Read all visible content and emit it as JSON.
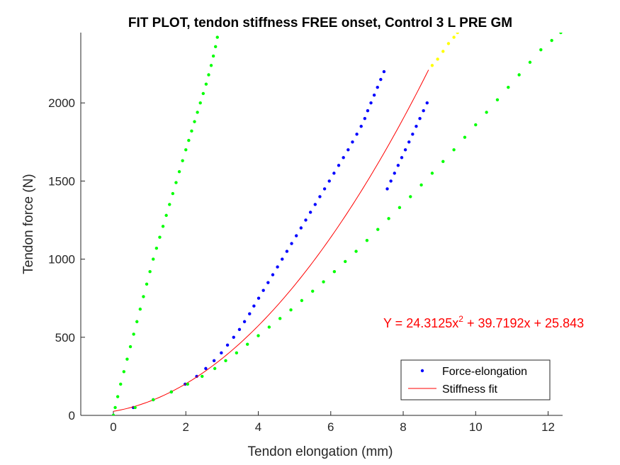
{
  "chart_data": {
    "type": "scatter",
    "title": "FIT PLOT, tendon stiffness FREE onset, Control 3 L PRE GM",
    "xlabel": "Tendon elongation (mm)",
    "ylabel": "Tendon force (N)",
    "xlim": [
      -0.9,
      12.4
    ],
    "ylim": [
      0,
      2450
    ],
    "xticks": [
      0,
      2,
      4,
      6,
      8,
      10,
      12
    ],
    "yticks": [
      0,
      500,
      1000,
      1500,
      2000
    ],
    "xtick_labels": [
      "0",
      "2",
      "4",
      "6",
      "8",
      "10",
      "12"
    ],
    "ytick_labels": [
      "0",
      "500",
      "1000",
      "1500",
      "2000"
    ],
    "annotation": {
      "prefix": "Y = 24.3125x",
      "exponent": "2",
      "suffix": " + 39.7192x + 25.843",
      "color": "#ff0000"
    },
    "legend": {
      "position": "bottom-right",
      "entries": [
        {
          "label": "Force-elongation",
          "marker": "dot",
          "color": "#0000ff"
        },
        {
          "label": "Stiffness fit",
          "marker": "line",
          "color": "#ff0000"
        }
      ]
    },
    "series": [
      {
        "name": "Force-elongation",
        "kind": "points",
        "color": "#0000ff",
        "x": [
          0.0,
          0.55,
          1.1,
          1.6,
          1.98,
          2.3,
          2.55,
          2.78,
          2.98,
          3.15,
          3.32,
          3.48,
          3.62,
          3.76,
          3.88,
          4.01,
          4.14,
          4.27,
          4.4,
          4.53,
          4.66,
          4.79,
          4.92,
          5.05,
          5.18,
          5.31,
          5.44,
          5.57,
          5.7,
          5.83,
          5.96,
          6.09,
          6.22,
          6.35,
          6.48,
          6.6,
          6.72,
          6.84,
          6.94,
          7.02,
          7.11,
          7.2,
          7.29,
          7.38,
          7.47,
          7.56,
          7.66,
          7.76,
          7.86,
          7.96,
          8.06,
          8.16,
          8.26,
          8.36,
          8.46,
          8.56,
          8.66
        ],
        "y": [
          0,
          50,
          100,
          150,
          200,
          250,
          300,
          350,
          400,
          450,
          500,
          550,
          600,
          650,
          700,
          750,
          800,
          850,
          900,
          950,
          1000,
          1050,
          1100,
          1150,
          1200,
          1250,
          1300,
          1350,
          1400,
          1450,
          1500,
          1550,
          1600,
          1650,
          1700,
          1750,
          1800,
          1850,
          1900,
          1950,
          2000,
          2050,
          2100,
          2150,
          2200,
          1450,
          1500,
          1550,
          1600,
          1650,
          1700,
          1750,
          1800,
          1850,
          1900,
          1950,
          2000
        ]
      },
      {
        "name": "Stiffness fit",
        "kind": "line",
        "color": "#ff0000",
        "equation": {
          "a": 24.3125,
          "b": 39.7192,
          "c": 25.843
        },
        "x_range": [
          0,
          8.7
        ]
      },
      {
        "kind": "points",
        "color": "#00ff00",
        "x": [
          0.0,
          0.05,
          0.12,
          0.2,
          0.29,
          0.38,
          0.47,
          0.56,
          0.65,
          0.74,
          0.83,
          0.92,
          1.01,
          1.1,
          1.19,
          1.28,
          1.37,
          1.46,
          1.55,
          1.64,
          1.73,
          1.82,
          1.91,
          2.0,
          2.08,
          2.16,
          2.24,
          2.32,
          2.4,
          2.48,
          2.56,
          2.63,
          2.7,
          2.76,
          2.82,
          2.87
        ],
        "y": [
          0,
          50,
          120,
          200,
          280,
          360,
          440,
          520,
          600,
          680,
          760,
          840,
          920,
          1000,
          1070,
          1140,
          1210,
          1280,
          1350,
          1420,
          1490,
          1560,
          1630,
          1700,
          1760,
          1820,
          1880,
          1940,
          2000,
          2060,
          2120,
          2180,
          2240,
          2300,
          2360,
          2420
        ]
      },
      {
        "kind": "points",
        "color": "#00ff00",
        "x": [
          0.0,
          0.6,
          1.1,
          1.6,
          2.05,
          2.45,
          2.8,
          3.1,
          3.4,
          3.7,
          4.0,
          4.3,
          4.6,
          4.9,
          5.2,
          5.5,
          5.8,
          6.1,
          6.4,
          6.7,
          7.0,
          7.3,
          7.6,
          7.9,
          8.2,
          8.5,
          8.8,
          9.1,
          9.4,
          9.7,
          10.0,
          10.3,
          10.6,
          10.9,
          11.2,
          11.5,
          11.8,
          12.1,
          12.35
        ],
        "y": [
          0,
          50,
          100,
          150,
          200,
          250,
          300,
          350,
          400,
          455,
          510,
          565,
          620,
          675,
          735,
          795,
          855,
          920,
          985,
          1050,
          1120,
          1190,
          1260,
          1330,
          1400,
          1475,
          1550,
          1625,
          1700,
          1780,
          1860,
          1940,
          2020,
          2100,
          2180,
          2260,
          2340,
          2400,
          2450
        ]
      },
      {
        "kind": "points",
        "color": "#ffff00",
        "x": [
          8.8,
          8.95,
          9.1,
          9.25,
          9.4,
          9.5
        ],
        "y": [
          2240,
          2280,
          2330,
          2380,
          2420,
          2450
        ]
      }
    ]
  }
}
